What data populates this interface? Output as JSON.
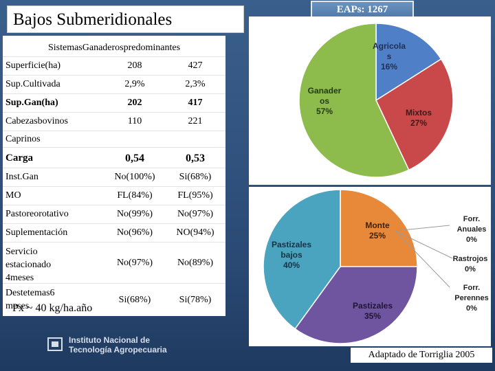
{
  "title": "Bajos Submeridionales",
  "eaps_badge": "EAPs: 1267",
  "table": {
    "header": "SistemasGanaderospredominantes",
    "rows": [
      {
        "label": "Superficie(ha)",
        "v1": "208",
        "v2": "427"
      },
      {
        "label": "Sup.Cultivada",
        "v1": "2,9%",
        "v2": "2,3%"
      },
      {
        "label": "Sup.Gan(ha)",
        "v1": "202",
        "v2": "417"
      },
      {
        "label": "Cabezasbovinos",
        "v1": "110",
        "v2": "221"
      },
      {
        "label": "Caprinos",
        "v1": "",
        "v2": ""
      },
      {
        "label": "Carga",
        "v1": "0,54",
        "v2": "0,53"
      },
      {
        "label": "Inst.Gan",
        "v1": "No(100%)",
        "v2": "Si(68%)"
      },
      {
        "label": "MO",
        "v1": "FL(84%)",
        "v2": "FL(95%)"
      },
      {
        "label": "Pastoreorotativo",
        "v1": "No(99%)",
        "v2": "No(97%)"
      },
      {
        "label": "Suplementación",
        "v1": "No(96%)",
        "v2": "NO(94%)"
      },
      {
        "label_lines": [
          "Servicio",
          "estacionado",
          "4meses"
        ],
        "v1": "No(97%)",
        "v2": "No(89%)"
      },
      {
        "label_lines": [
          "Destetemas6",
          "meses"
        ],
        "v1": "Si(68%)",
        "v2": "Si(78%)"
      }
    ]
  },
  "px_note": "Px ~ 40 kg/ha.año",
  "institution": {
    "line1": "Instituto Nacional de",
    "line2": "Tecnología Agropecuaria"
  },
  "credit": "Adaptado de Torriglia 2005",
  "chart_data": [
    {
      "type": "pie",
      "title": "",
      "slices": [
        {
          "label": "Agricolas",
          "label_lines": [
            "Agricola",
            "s",
            "16%"
          ],
          "value": 16,
          "color": "#4f7fc6"
        },
        {
          "label": "Mixtos",
          "label_lines": [
            "Mixtos",
            "27%"
          ],
          "value": 27,
          "color": "#c9484a"
        },
        {
          "label": "Ganaderos",
          "label_lines": [
            "Ganader",
            "os",
            "57%"
          ],
          "value": 57,
          "color": "#8dbb4c"
        }
      ]
    },
    {
      "type": "pie",
      "title": "",
      "slices": [
        {
          "label": "Monte",
          "label_lines": [
            "Monte",
            "25%"
          ],
          "value": 25,
          "color": "#e8893a"
        },
        {
          "label": "Forr. Anuales",
          "label_lines": [
            "Forr.",
            "Anuales",
            "0%"
          ],
          "value": 0,
          "color": "#c9484a"
        },
        {
          "label": "Rastrojos",
          "label_lines": [
            "Rastrojos",
            "0%"
          ],
          "value": 0,
          "color": "#8dbb4c"
        },
        {
          "label": "Forr. Perennes",
          "label_lines": [
            "Forr.",
            "Perennes",
            "0%"
          ],
          "value": 0,
          "color": "#6d4c8f"
        },
        {
          "label": "Pastizales",
          "label_lines": [
            "Pastizales",
            "35%"
          ],
          "value": 35,
          "color": "#6f54a0"
        },
        {
          "label": "Pastizales bajos",
          "label_lines": [
            "Pastizales",
            "bajos",
            "40%"
          ],
          "value": 40,
          "color": "#4aa3bf"
        }
      ]
    }
  ]
}
